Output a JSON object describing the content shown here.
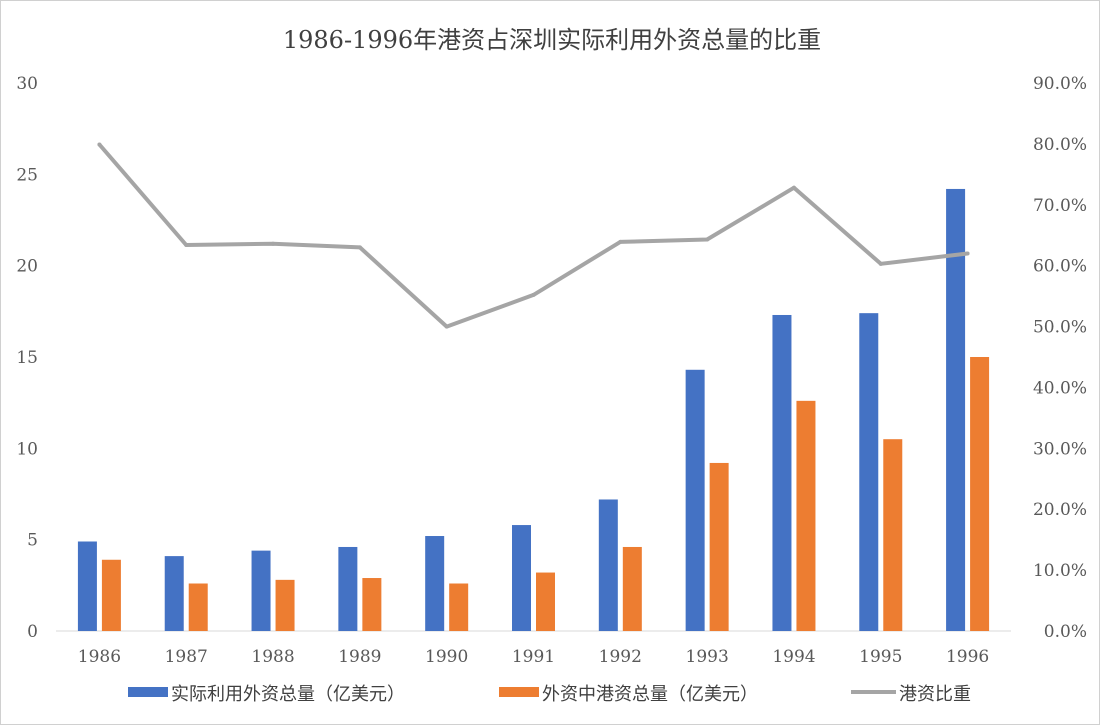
{
  "chart_data": {
    "type": "bar",
    "title": "1986-1996年港资占深圳实际利用外资总量的比重",
    "categories": [
      "1986",
      "1987",
      "1988",
      "1989",
      "1990",
      "1991",
      "1992",
      "1993",
      "1994",
      "1995",
      "1996"
    ],
    "series": [
      {
        "name": "实际利用外资总量（亿美元）",
        "type": "bar",
        "axis": "left",
        "color": "#4472C4",
        "values": [
          4.9,
          4.1,
          4.4,
          4.6,
          5.2,
          5.8,
          7.2,
          14.3,
          17.3,
          17.4,
          24.2
        ]
      },
      {
        "name": "外资中港资总量（亿美元）",
        "type": "bar",
        "axis": "left",
        "color": "#ED7D31",
        "values": [
          3.9,
          2.6,
          2.8,
          2.9,
          2.6,
          3.2,
          4.6,
          9.2,
          12.6,
          10.5,
          15.0
        ]
      },
      {
        "name": "港资比重",
        "type": "line",
        "axis": "right",
        "color": "#A5A5A5",
        "values": [
          0.799,
          0.634,
          0.636,
          0.63,
          0.5,
          0.552,
          0.639,
          0.643,
          0.728,
          0.603,
          0.62
        ]
      }
    ],
    "y_left": {
      "ylim": [
        0,
        30
      ],
      "ticks": [
        "0",
        "5",
        "10",
        "15",
        "20",
        "25",
        "30"
      ]
    },
    "y_right": {
      "ylim": [
        0,
        0.9
      ],
      "ticks": [
        "0.0%",
        "10.0%",
        "20.0%",
        "30.0%",
        "40.0%",
        "50.0%",
        "60.0%",
        "70.0%",
        "80.0%",
        "90.0%"
      ]
    },
    "grid": false,
    "legend": "bottom"
  }
}
